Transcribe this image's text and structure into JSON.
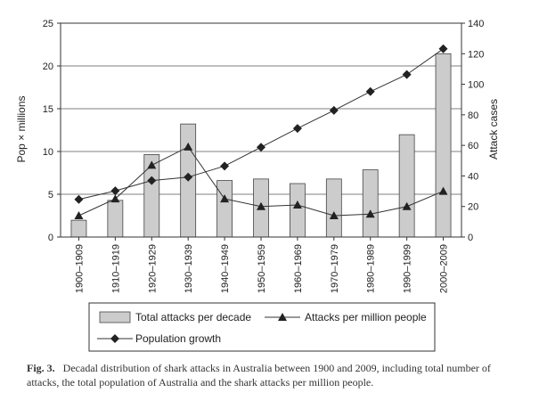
{
  "chart_data": {
    "type": "bar",
    "categories": [
      "1900–1909",
      "1910–1919",
      "1920–1929",
      "1930–1939",
      "1940–1949",
      "1950–1959",
      "1960–1969",
      "1970–1979",
      "1980–1989",
      "1990–1999",
      "2000–2009"
    ],
    "y_left": {
      "label": "Pop × millions",
      "lim": [
        0,
        25
      ],
      "ticks": [
        0,
        5,
        10,
        15,
        20,
        25
      ]
    },
    "y_right": {
      "label": "Attack cases",
      "lim": [
        0,
        140
      ],
      "ticks": [
        0,
        20,
        40,
        60,
        80,
        100,
        120,
        140
      ]
    },
    "grid": "horizontal",
    "series": [
      {
        "name": "Total attacks per decade",
        "type": "bar",
        "axis": "right",
        "color": "#cccccc",
        "values": [
          11,
          24,
          54,
          74,
          37,
          38,
          35,
          38,
          44,
          67,
          120
        ]
      },
      {
        "name": "Attacks per million people",
        "type": "line",
        "marker": "triangle",
        "axis": "right",
        "color": "#333333",
        "values": [
          14,
          25,
          47,
          59,
          25,
          20,
          21,
          14,
          15,
          20,
          30
        ]
      },
      {
        "name": "Population growth",
        "type": "line",
        "marker": "diamond",
        "axis": "left",
        "color": "#333333",
        "values": [
          4.4,
          5.4,
          6.6,
          7.0,
          8.3,
          10.5,
          12.7,
          14.8,
          17.0,
          19.0,
          22.0
        ]
      }
    ],
    "legend_position": "bottom"
  },
  "caption": {
    "label": "Fig. 3.",
    "text": "Decadal distribution of shark attacks in Australia between 1900 and 2009, including total number of attacks, the total population of Australia and the shark attacks per million people."
  }
}
